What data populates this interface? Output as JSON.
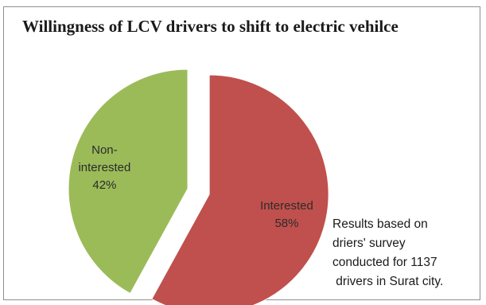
{
  "chart_data": {
    "type": "pie",
    "title": "Willingness of LCV drivers to shift to electric vehilce",
    "slices": [
      {
        "label_lines": [
          "Interested",
          "58%"
        ],
        "category": "Interested",
        "value": 58,
        "color": "#c0504d",
        "exploded": true
      },
      {
        "label_lines": [
          "Non-",
          "interested",
          "42%"
        ],
        "category": "Non-interested",
        "value": 42,
        "color": "#9bbb59",
        "exploded": false
      }
    ],
    "annotation_lines": [
      "Results based on",
      "driers' survey",
      "conducted for 1137",
      " drivers in Surat city."
    ]
  }
}
